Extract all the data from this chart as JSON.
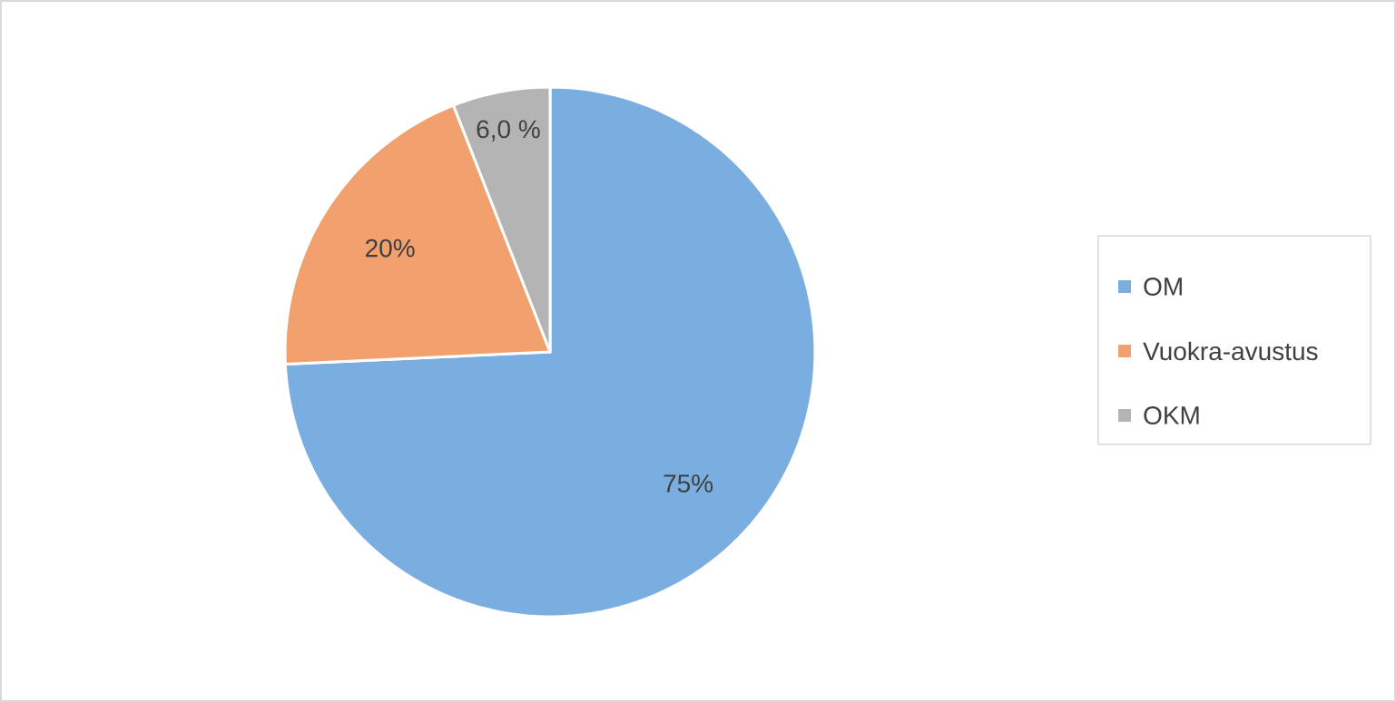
{
  "chart_data": {
    "type": "pie",
    "categories": [
      "OM",
      "Vuokra-avustus",
      "OKM"
    ],
    "values": [
      75,
      20,
      6.0
    ],
    "value_labels": [
      "75%",
      "20%",
      "6,0 %"
    ],
    "colors": [
      "#7aaee0",
      "#f2a06e",
      "#b4b4b4"
    ],
    "legend": "right"
  }
}
